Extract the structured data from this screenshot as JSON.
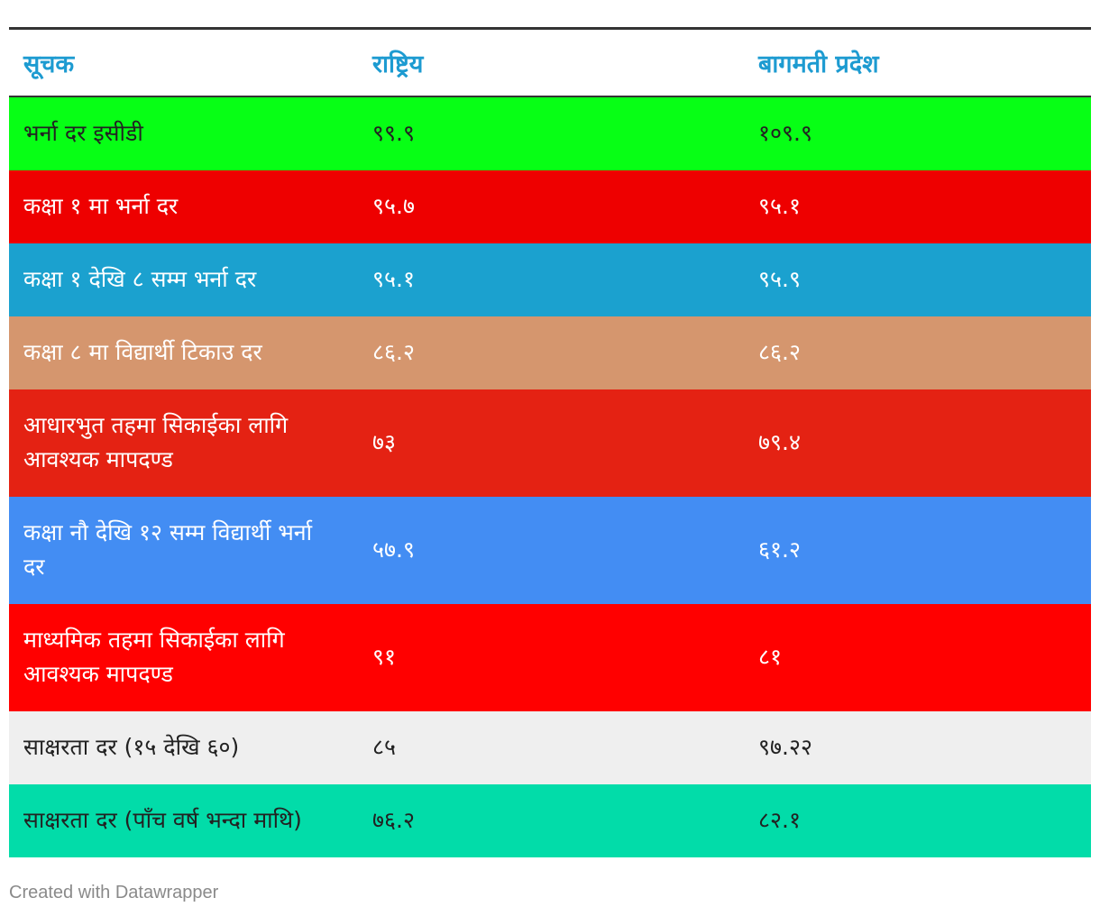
{
  "chart_data": {
    "type": "table",
    "columns": [
      "सूचक",
      "राष्ट्रिय",
      "बागमती प्रदेश"
    ],
    "rows": [
      {
        "indicator": "भर्ना दर इसीडी",
        "national": "९९.९",
        "bagmati": "१०९.९",
        "bg": "#07ff15",
        "fg": "#222222",
        "tall": false
      },
      {
        "indicator": "कक्षा १ मा भर्ना दर",
        "national": "९५.७",
        "bagmati": "९५.१",
        "bg": "#ee0000",
        "fg": "#ffffff",
        "tall": false
      },
      {
        "indicator": "कक्षा १ देखि ८ सम्म भर्ना दर",
        "national": "९५.१",
        "bagmati": "९५.९",
        "bg": "#1ba1cf",
        "fg": "#ffffff",
        "tall": false
      },
      {
        "indicator": "कक्षा ८ मा विद्यार्थी टिकाउ दर",
        "national": "८६.२",
        "bagmati": "८६.२",
        "bg": "#d5966e",
        "fg": "#ffffff",
        "tall": false
      },
      {
        "indicator": "आधारभुत तहमा सिकाईका लागि आवश्यक मापदण्ड",
        "national": "७३",
        "bagmati": "७९.४",
        "bg": "#e42213",
        "fg": "#ffffff",
        "tall": true
      },
      {
        "indicator": "कक्षा नौ देखि १२ सम्म विद्यार्थी भर्ना दर",
        "national": "५७.९",
        "bagmati": "६१.२",
        "bg": "#438df3",
        "fg": "#ffffff",
        "tall": true
      },
      {
        "indicator": "माध्यमिक तहमा सिकाईका लागि आवश्यक मापदण्ड",
        "national": "९१",
        "bagmati": "८१",
        "bg": "#ff0000",
        "fg": "#ffffff",
        "tall": true
      },
      {
        "indicator": "साक्षरता दर (१५ देखि ६०)",
        "national": "८५",
        "bagmati": "९७.२२",
        "bg": "#efefef",
        "fg": "#222222",
        "tall": false
      },
      {
        "indicator": "साक्षरता दर (पाँच वर्ष भन्दा माथि)",
        "national": "७६.२",
        "bagmati": "८२.१",
        "bg": "#02dca9",
        "fg": "#222222",
        "tall": false
      }
    ]
  },
  "colors": {
    "header_text": "#1d9bd1",
    "rule": "#333333",
    "footer_text": "#8a8a8a"
  },
  "footer": {
    "credit": "Created with Datawrapper"
  }
}
